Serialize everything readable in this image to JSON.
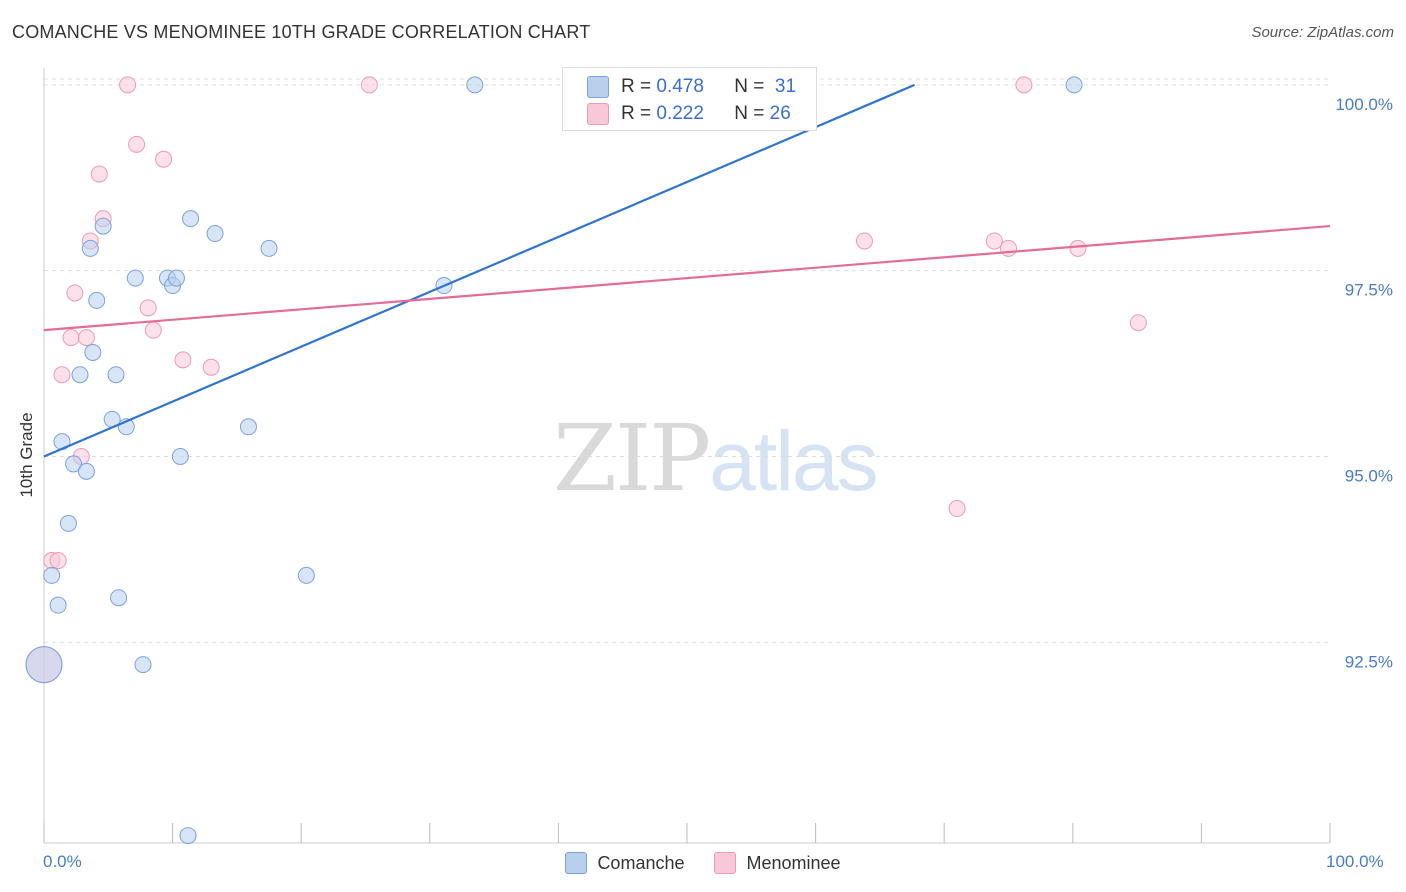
{
  "title": "COMANCHE VS MENOMINEE 10TH GRADE CORRELATION CHART",
  "source": "Source: ZipAtlas.com",
  "watermark": {
    "part1": "ZIP",
    "part2": "atlas"
  },
  "legend": {
    "rows": [
      {
        "r_label": "R =",
        "r_value": "0.478",
        "n_label": "N =",
        "n_value": "31"
      },
      {
        "r_label": "R =",
        "r_value": "0.222",
        "n_label": "N =",
        "n_value": "26"
      }
    ]
  },
  "bottom_legend": {
    "comanche": "Comanche",
    "menominee": "Menominee"
  },
  "x_ticks": {
    "min": "0.0%",
    "max": "100.0%"
  },
  "colors": {
    "comanche_fill": "#b8d0ee",
    "comanche_stroke": "#7aa3d9",
    "comanche_line": "#2f74d0",
    "menominee_fill": "#f9c8d8",
    "menominee_stroke": "#ee9ab5",
    "menominee_line": "#e46d96",
    "tick_text": "#4a7bc8",
    "grid": "#dddddd"
  },
  "chart_data": {
    "type": "scatter",
    "title": "COMANCHE VS MENOMINEE 10TH GRADE CORRELATION CHART",
    "xlabel": "",
    "ylabel": "10th Grade",
    "xlim": [
      0,
      100
    ],
    "ylim": [
      89.8,
      100.2
    ],
    "y_ticks": [
      {
        "value": 100.0,
        "label": "100.0%"
      },
      {
        "value": 97.5,
        "label": "97.5%"
      },
      {
        "value": 95.0,
        "label": "95.0%"
      },
      {
        "value": 92.5,
        "label": "92.5%"
      }
    ],
    "series": [
      {
        "name": "Comanche",
        "R": 0.478,
        "N": 31,
        "trend": {
          "x": [
            0,
            67.7
          ],
          "y": [
            95.0,
            100.0
          ]
        },
        "points": [
          {
            "x": 0.0,
            "y": 92.2,
            "size": "large"
          },
          {
            "x": 0.6,
            "y": 93.4
          },
          {
            "x": 1.1,
            "y": 93.0
          },
          {
            "x": 1.4,
            "y": 95.2
          },
          {
            "x": 1.9,
            "y": 94.1
          },
          {
            "x": 2.3,
            "y": 94.9
          },
          {
            "x": 2.8,
            "y": 96.1
          },
          {
            "x": 3.3,
            "y": 94.8
          },
          {
            "x": 3.6,
            "y": 97.8
          },
          {
            "x": 3.8,
            "y": 96.4
          },
          {
            "x": 4.1,
            "y": 97.1
          },
          {
            "x": 4.6,
            "y": 98.1
          },
          {
            "x": 5.3,
            "y": 95.5
          },
          {
            "x": 5.6,
            "y": 96.1
          },
          {
            "x": 5.8,
            "y": 93.1
          },
          {
            "x": 6.4,
            "y": 95.4
          },
          {
            "x": 7.1,
            "y": 97.4
          },
          {
            "x": 7.7,
            "y": 92.2
          },
          {
            "x": 9.6,
            "y": 97.4
          },
          {
            "x": 10.0,
            "y": 97.3
          },
          {
            "x": 10.3,
            "y": 97.4
          },
          {
            "x": 10.6,
            "y": 95.0
          },
          {
            "x": 11.2,
            "y": 89.9
          },
          {
            "x": 11.4,
            "y": 98.2
          },
          {
            "x": 13.3,
            "y": 98.0
          },
          {
            "x": 15.9,
            "y": 95.4
          },
          {
            "x": 17.5,
            "y": 97.8
          },
          {
            "x": 20.4,
            "y": 93.4
          },
          {
            "x": 31.1,
            "y": 97.3
          },
          {
            "x": 33.5,
            "y": 100.0
          },
          {
            "x": 80.1,
            "y": 100.0
          }
        ]
      },
      {
        "name": "Menominee",
        "R": 0.222,
        "N": 26,
        "trend": {
          "x": [
            0,
            100
          ],
          "y": [
            96.7,
            98.1
          ]
        },
        "points": [
          {
            "x": 0.0,
            "y": 92.2,
            "size": "large"
          },
          {
            "x": 0.6,
            "y": 93.6
          },
          {
            "x": 1.1,
            "y": 93.6
          },
          {
            "x": 1.4,
            "y": 96.1
          },
          {
            "x": 2.1,
            "y": 96.6
          },
          {
            "x": 2.4,
            "y": 97.2
          },
          {
            "x": 2.9,
            "y": 95.0
          },
          {
            "x": 3.3,
            "y": 96.6
          },
          {
            "x": 3.6,
            "y": 97.9
          },
          {
            "x": 4.3,
            "y": 98.8
          },
          {
            "x": 4.6,
            "y": 98.2
          },
          {
            "x": 6.5,
            "y": 100.0
          },
          {
            "x": 7.2,
            "y": 99.2
          },
          {
            "x": 8.1,
            "y": 97.0
          },
          {
            "x": 8.5,
            "y": 96.7
          },
          {
            "x": 9.3,
            "y": 99.0
          },
          {
            "x": 10.8,
            "y": 96.3
          },
          {
            "x": 13.0,
            "y": 96.2
          },
          {
            "x": 25.3,
            "y": 100.0
          },
          {
            "x": 63.8,
            "y": 97.9
          },
          {
            "x": 71.0,
            "y": 94.3
          },
          {
            "x": 73.9,
            "y": 97.9
          },
          {
            "x": 75.0,
            "y": 97.8
          },
          {
            "x": 76.2,
            "y": 100.0
          },
          {
            "x": 80.4,
            "y": 97.8
          },
          {
            "x": 85.1,
            "y": 96.8
          }
        ]
      }
    ]
  }
}
